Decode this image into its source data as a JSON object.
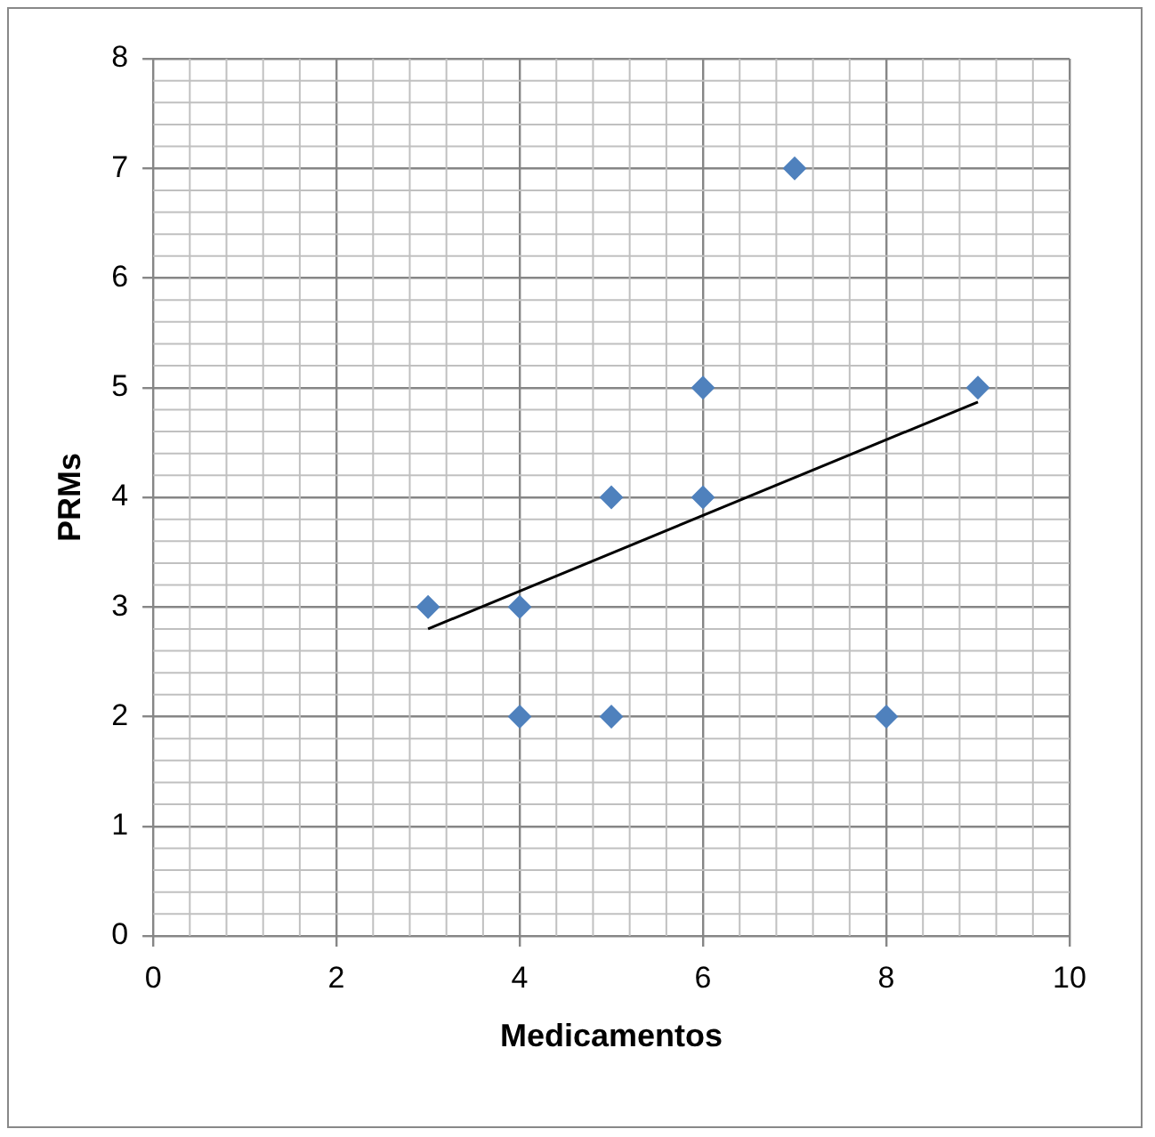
{
  "chart_data": {
    "type": "scatter",
    "xlabel": "Medicamentos",
    "ylabel": "PRMs",
    "x": [
      3,
      4,
      4,
      5,
      5,
      6,
      6,
      7,
      8,
      9
    ],
    "series": [
      {
        "type": "scatter",
        "color": "#4f81bd",
        "values": [
          3,
          3,
          2,
          4,
          2,
          5,
          4,
          7,
          2,
          5
        ],
        "marker": "diamond"
      },
      {
        "type": "line",
        "color": "#000000",
        "x": [
          3,
          9
        ],
        "values": [
          2.8,
          4.87
        ],
        "marker": "none"
      }
    ],
    "xlim": [
      0,
      10
    ],
    "xticks": [
      0,
      2,
      4,
      6,
      8,
      10
    ],
    "ylim": [
      0,
      8
    ],
    "yticks": [
      0,
      1,
      2,
      3,
      4,
      5,
      6,
      7,
      8
    ],
    "grid": true,
    "legend": false
  }
}
